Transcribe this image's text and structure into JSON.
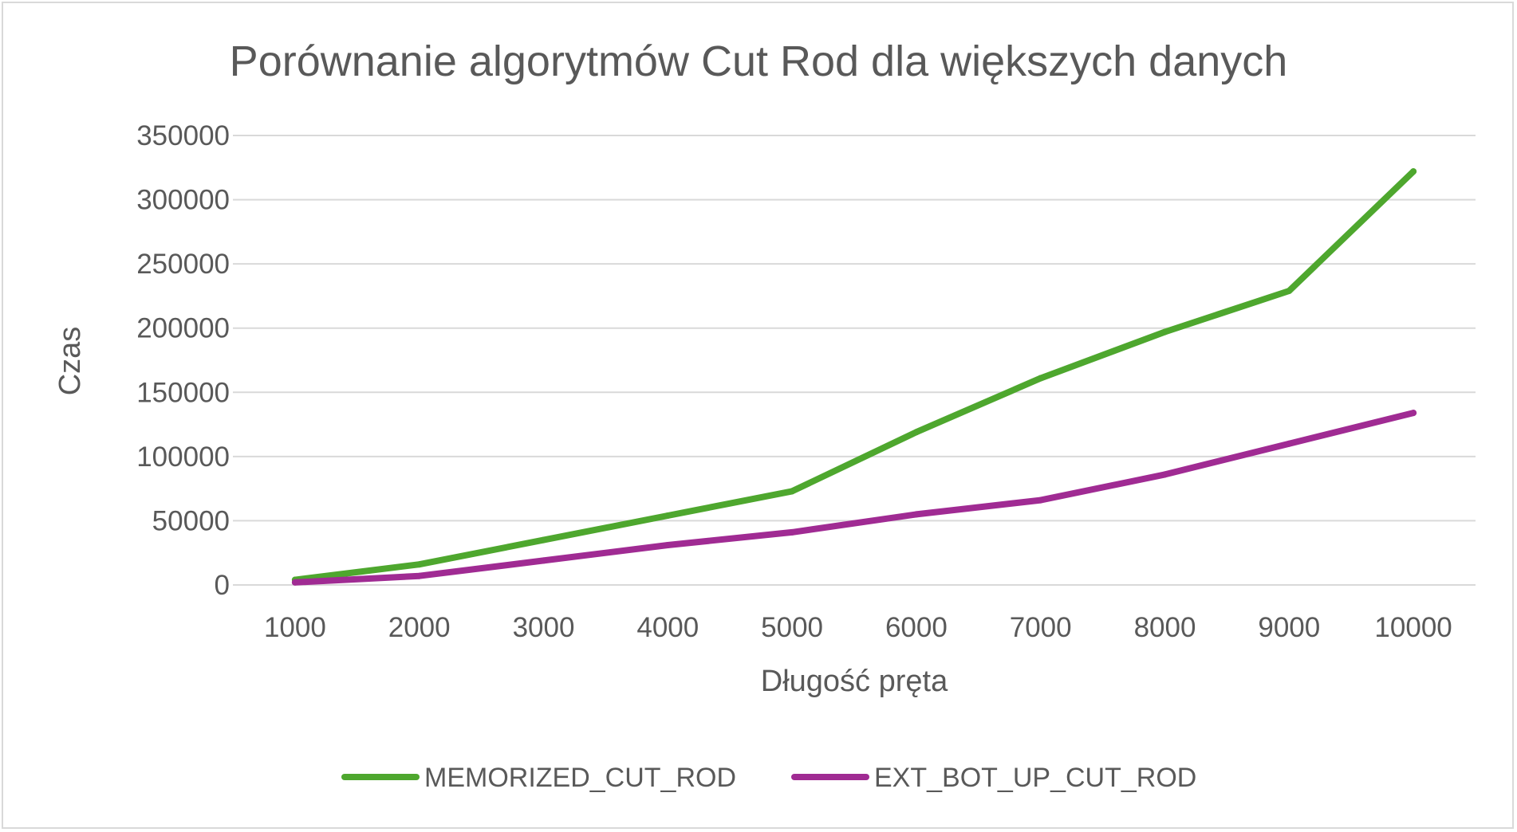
{
  "chart_data": {
    "type": "line",
    "title": "Porównanie algorytmów Cut Rod dla większych danych",
    "xlabel": "Długość pręta",
    "ylabel": "Czas",
    "categories": [
      "1000",
      "2000",
      "3000",
      "4000",
      "5000",
      "6000",
      "7000",
      "8000",
      "9000",
      "10000"
    ],
    "y_ticks": [
      "0",
      "50000",
      "100000",
      "150000",
      "200000",
      "250000",
      "300000",
      "350000"
    ],
    "ylim": [
      0,
      350000
    ],
    "grid": true,
    "legend_position": "bottom",
    "series": [
      {
        "name": "MEMORIZED_CUT_ROD",
        "color": "#4ea72e",
        "values": [
          4000,
          16000,
          35000,
          54000,
          73000,
          119000,
          161000,
          197000,
          229000,
          322000
        ]
      },
      {
        "name": "EXT_BOT_UP_CUT_ROD",
        "color": "#a02b93",
        "values": [
          2000,
          7000,
          19000,
          31000,
          41000,
          55000,
          66000,
          86000,
          110000,
          134000
        ]
      }
    ]
  }
}
